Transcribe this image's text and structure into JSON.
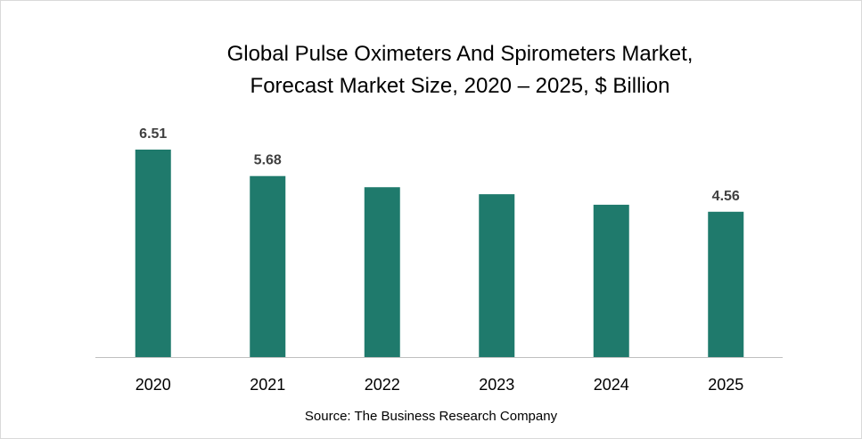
{
  "chart_data": {
    "type": "bar",
    "title_lines": [
      "Global Pulse Oximeters And Spirometers Market,",
      "Forecast Market Size, 2020 – 2025, $ Billion"
    ],
    "categories": [
      "2020",
      "2021",
      "2022",
      "2023",
      "2024",
      "2025"
    ],
    "values": [
      6.51,
      5.68,
      5.33,
      5.11,
      4.78,
      4.56
    ],
    "data_labels": [
      "6.51",
      "5.68",
      null,
      null,
      null,
      "4.56"
    ],
    "xlabel": "",
    "ylabel": "",
    "ylim": [
      0,
      6.51
    ],
    "grid": false,
    "legend": "none",
    "bar_color": "#1f7a6c",
    "source": "Source: The Business Research Company"
  }
}
